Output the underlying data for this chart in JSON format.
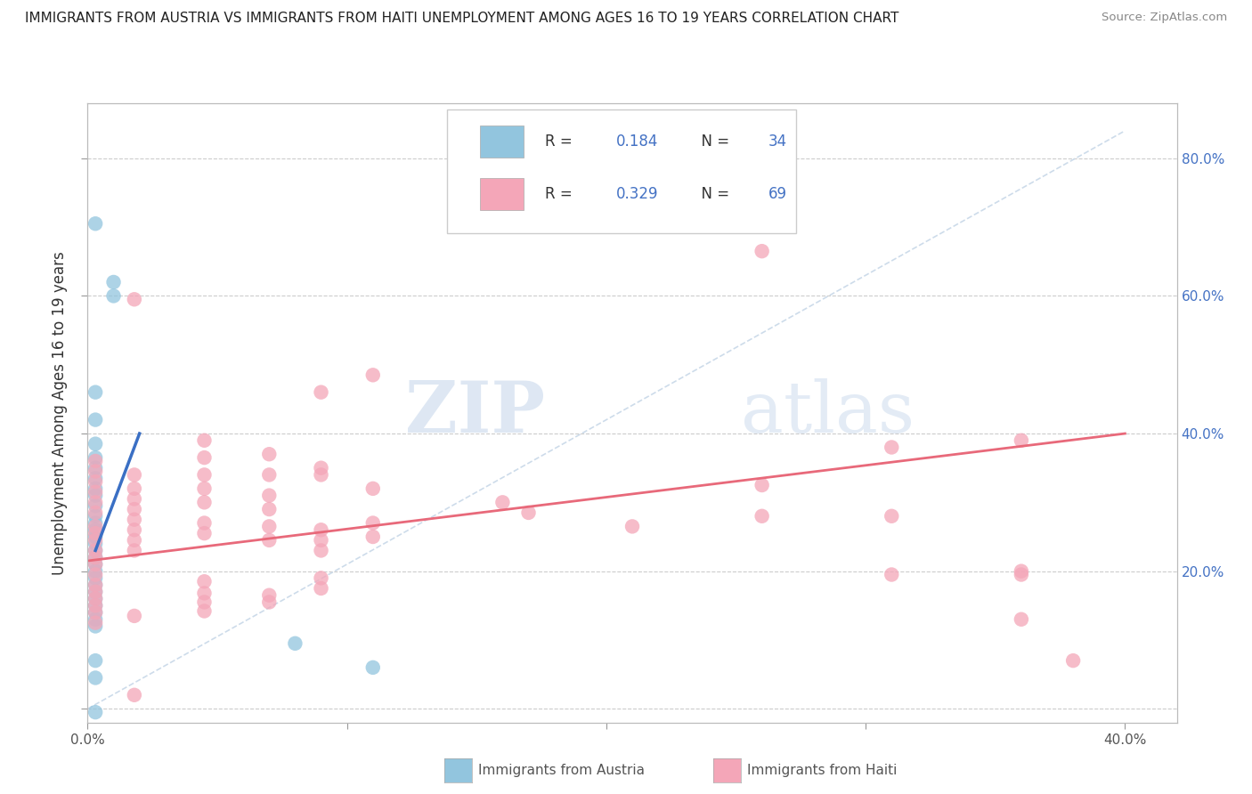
{
  "title": "IMMIGRANTS FROM AUSTRIA VS IMMIGRANTS FROM HAITI UNEMPLOYMENT AMONG AGES 16 TO 19 YEARS CORRELATION CHART",
  "source": "Source: ZipAtlas.com",
  "ylabel": "Unemployment Among Ages 16 to 19 years",
  "xlim": [
    0.0,
    0.42
  ],
  "ylim": [
    -0.02,
    0.88
  ],
  "austria_color": "#92C5DE",
  "haiti_color": "#F4A6B8",
  "austria_line_color": "#3A6FC4",
  "haiti_line_color": "#E8697A",
  "diagonal_color": "#C8D8E8",
  "austria_scatter": [
    [
      0.003,
      0.705
    ],
    [
      0.01,
      0.62
    ],
    [
      0.01,
      0.6
    ],
    [
      0.003,
      0.46
    ],
    [
      0.003,
      0.42
    ],
    [
      0.003,
      0.385
    ],
    [
      0.003,
      0.365
    ],
    [
      0.003,
      0.35
    ],
    [
      0.003,
      0.335
    ],
    [
      0.003,
      0.32
    ],
    [
      0.003,
      0.31
    ],
    [
      0.003,
      0.295
    ],
    [
      0.003,
      0.28
    ],
    [
      0.003,
      0.27
    ],
    [
      0.003,
      0.26
    ],
    [
      0.003,
      0.25
    ],
    [
      0.003,
      0.24
    ],
    [
      0.003,
      0.23
    ],
    [
      0.003,
      0.22
    ],
    [
      0.003,
      0.21
    ],
    [
      0.003,
      0.2
    ],
    [
      0.003,
      0.19
    ],
    [
      0.003,
      0.18
    ],
    [
      0.003,
      0.17
    ],
    [
      0.003,
      0.16
    ],
    [
      0.003,
      0.15
    ],
    [
      0.003,
      0.14
    ],
    [
      0.003,
      0.13
    ],
    [
      0.003,
      0.12
    ],
    [
      0.003,
      0.07
    ],
    [
      0.003,
      0.045
    ],
    [
      0.003,
      -0.005
    ],
    [
      0.08,
      0.095
    ],
    [
      0.11,
      0.06
    ]
  ],
  "haiti_scatter": [
    [
      0.003,
      0.36
    ],
    [
      0.003,
      0.345
    ],
    [
      0.003,
      0.33
    ],
    [
      0.003,
      0.315
    ],
    [
      0.003,
      0.3
    ],
    [
      0.003,
      0.285
    ],
    [
      0.003,
      0.265
    ],
    [
      0.003,
      0.255
    ],
    [
      0.003,
      0.245
    ],
    [
      0.003,
      0.23
    ],
    [
      0.003,
      0.22
    ],
    [
      0.003,
      0.21
    ],
    [
      0.003,
      0.195
    ],
    [
      0.003,
      0.18
    ],
    [
      0.003,
      0.17
    ],
    [
      0.003,
      0.16
    ],
    [
      0.003,
      0.15
    ],
    [
      0.003,
      0.14
    ],
    [
      0.003,
      0.125
    ],
    [
      0.018,
      0.595
    ],
    [
      0.018,
      0.34
    ],
    [
      0.018,
      0.32
    ],
    [
      0.018,
      0.305
    ],
    [
      0.018,
      0.29
    ],
    [
      0.018,
      0.275
    ],
    [
      0.018,
      0.26
    ],
    [
      0.018,
      0.245
    ],
    [
      0.018,
      0.23
    ],
    [
      0.018,
      0.135
    ],
    [
      0.018,
      0.02
    ],
    [
      0.045,
      0.39
    ],
    [
      0.045,
      0.365
    ],
    [
      0.045,
      0.34
    ],
    [
      0.045,
      0.32
    ],
    [
      0.045,
      0.3
    ],
    [
      0.045,
      0.27
    ],
    [
      0.045,
      0.255
    ],
    [
      0.045,
      0.185
    ],
    [
      0.045,
      0.168
    ],
    [
      0.045,
      0.155
    ],
    [
      0.045,
      0.142
    ],
    [
      0.07,
      0.37
    ],
    [
      0.07,
      0.34
    ],
    [
      0.07,
      0.31
    ],
    [
      0.07,
      0.29
    ],
    [
      0.07,
      0.265
    ],
    [
      0.07,
      0.245
    ],
    [
      0.07,
      0.165
    ],
    [
      0.07,
      0.155
    ],
    [
      0.09,
      0.46
    ],
    [
      0.09,
      0.35
    ],
    [
      0.09,
      0.34
    ],
    [
      0.09,
      0.26
    ],
    [
      0.09,
      0.245
    ],
    [
      0.09,
      0.23
    ],
    [
      0.09,
      0.19
    ],
    [
      0.09,
      0.175
    ],
    [
      0.11,
      0.485
    ],
    [
      0.11,
      0.32
    ],
    [
      0.11,
      0.27
    ],
    [
      0.11,
      0.25
    ],
    [
      0.16,
      0.3
    ],
    [
      0.17,
      0.285
    ],
    [
      0.21,
      0.265
    ],
    [
      0.26,
      0.665
    ],
    [
      0.31,
      0.38
    ],
    [
      0.36,
      0.39
    ],
    [
      0.31,
      0.28
    ],
    [
      0.31,
      0.195
    ],
    [
      0.36,
      0.195
    ],
    [
      0.26,
      0.325
    ],
    [
      0.26,
      0.28
    ],
    [
      0.36,
      0.13
    ],
    [
      0.36,
      0.2
    ],
    [
      0.38,
      0.07
    ]
  ],
  "austria_trend_x": [
    0.003,
    0.02
  ],
  "austria_trend_y": [
    0.23,
    0.4
  ],
  "haiti_trend_x": [
    0.0,
    0.4
  ],
  "haiti_trend_y": [
    0.215,
    0.4
  ]
}
